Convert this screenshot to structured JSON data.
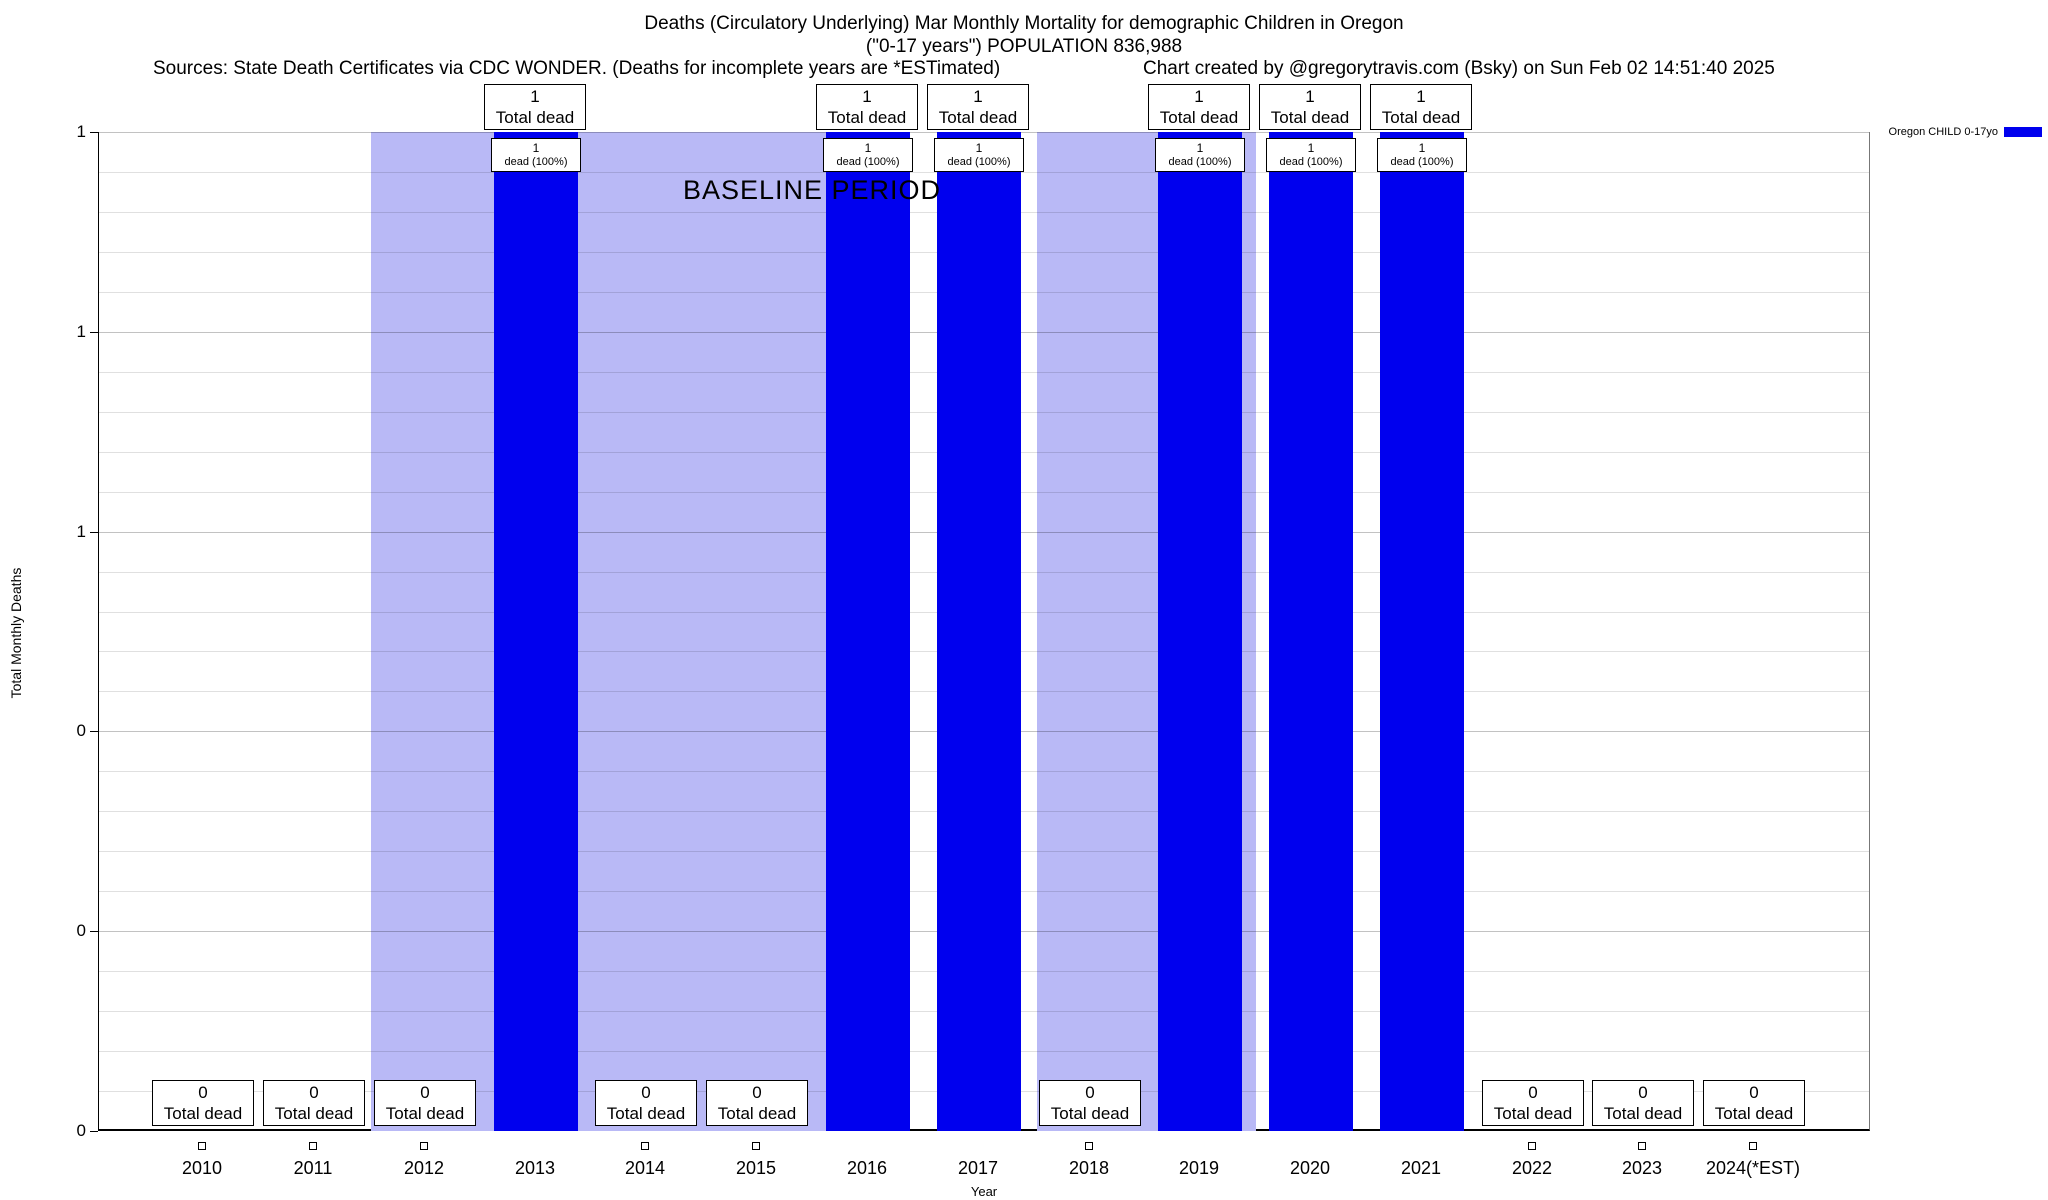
{
  "header": {
    "title_line1": "Deaths (Circulatory Underlying) Mar Monthly Mortality for demographic Children in Oregon",
    "title_line2": "(\"0-17 years\") POPULATION 836,988",
    "sources": "Sources: State Death Certificates via CDC WONDER. (Deaths for incomplete years are *ESTimated)",
    "credit": "Chart created by @gregorytravis.com (Bsky) on Sun Feb 02 14:51:40 2025"
  },
  "legend": {
    "label": "Oregon CHILD 0-17yo",
    "swatch_color": "#0000ee"
  },
  "baseline": {
    "label": "BASELINE PERIOD",
    "color": "#b9b9f6"
  },
  "axes": {
    "ylabel": "Total Monthly Deaths",
    "xlabel": "Year",
    "ytick_labels_top_to_bottom": [
      "1",
      "1",
      "1",
      "0",
      "0",
      "0"
    ]
  },
  "annotations": {
    "total_dead": "Total dead",
    "dead_pct": "dead (100%)"
  },
  "chart_data": {
    "type": "bar",
    "title": "Deaths (Circulatory Underlying) Mar Monthly Mortality for demographic Children in Oregon",
    "subtitle": "(\"0-17 years\") POPULATION 836,988",
    "categories": [
      "2010",
      "2011",
      "2012",
      "2013",
      "2014",
      "2015",
      "2016",
      "2017",
      "2018",
      "2019",
      "2020",
      "2021",
      "2022",
      "2023",
      "2024(*EST)"
    ],
    "series": [
      {
        "name": "Oregon CHILD 0-17yo",
        "values": [
          0,
          0,
          0,
          1,
          0,
          0,
          1,
          1,
          0,
          1,
          1,
          1,
          0,
          0,
          0
        ]
      }
    ],
    "xlabel": "Year",
    "ylabel": "Total Monthly Deaths",
    "ylim": [
      0,
      1
    ],
    "grid": true,
    "legend_position": "top-right",
    "bar_color": "#0000ee",
    "baseline_region": {
      "label": "BASELINE PERIOD",
      "approx_years": "2012-2019",
      "color": "#b9b9f6"
    },
    "bar_labels": {
      "nonzero_top": [
        "1",
        "Total dead"
      ],
      "nonzero_inner": [
        "1",
        "dead (100%)"
      ],
      "zero_bottom": [
        "0",
        "Total dead"
      ]
    }
  }
}
